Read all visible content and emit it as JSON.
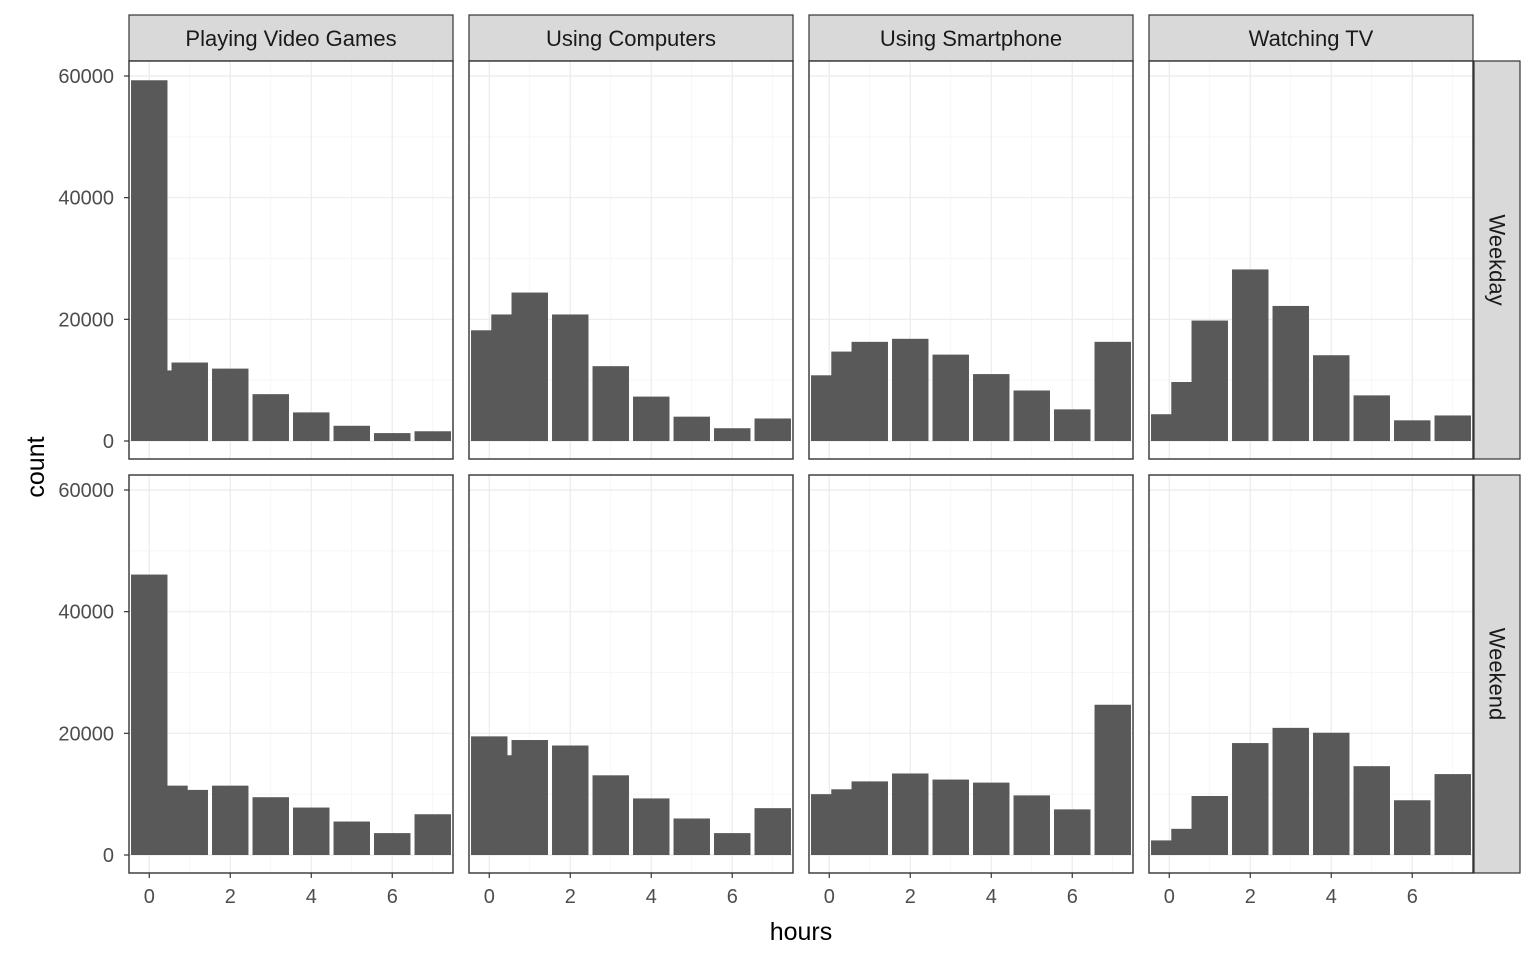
{
  "chart_data": {
    "type": "bar",
    "facet_columns": [
      "Playing Video Games",
      "Using Computers",
      "Using Smartphone",
      "Watching TV"
    ],
    "facet_rows": [
      "Weekday",
      "Weekend"
    ],
    "xlabel": "hours",
    "ylabel": "count",
    "xlim": [
      -0.5,
      7.5
    ],
    "ylim": [
      0,
      60000
    ],
    "x_ticks": [
      0,
      2,
      4,
      6
    ],
    "y_ticks": [
      0,
      20000,
      40000,
      60000
    ],
    "x_tick_labels": [
      "0",
      "2",
      "4",
      "6"
    ],
    "y_tick_labels": [
      "0",
      "20000",
      "40000",
      "60000"
    ],
    "x": [
      0,
      0.5,
      1,
      2,
      3,
      4,
      5,
      6,
      7
    ],
    "bar_color": "#595959",
    "grid": true,
    "theme": "bw",
    "panels": [
      {
        "row": "Weekday",
        "column": "Playing Video Games",
        "values": [
          59300,
          11600,
          12900,
          11900,
          7700,
          4700,
          2500,
          1300,
          1600
        ]
      },
      {
        "row": "Weekday",
        "column": "Using Computers",
        "values": [
          18200,
          20800,
          24400,
          20800,
          12300,
          7300,
          4000,
          2100,
          3700
        ]
      },
      {
        "row": "Weekday",
        "column": "Using Smartphone",
        "values": [
          10800,
          14700,
          16300,
          16800,
          14200,
          11000,
          8300,
          5200,
          16300
        ]
      },
      {
        "row": "Weekday",
        "column": "Watching TV",
        "values": [
          4400,
          9700,
          19800,
          28200,
          22200,
          14100,
          7500,
          3400,
          4200
        ]
      },
      {
        "row": "Weekend",
        "column": "Playing Video Games",
        "values": [
          46100,
          11400,
          10700,
          11400,
          9500,
          7800,
          5500,
          3600,
          6700
        ]
      },
      {
        "row": "Weekend",
        "column": "Using Computers",
        "values": [
          19500,
          16400,
          18900,
          18000,
          13100,
          9300,
          6000,
          3600,
          7700
        ]
      },
      {
        "row": "Weekend",
        "column": "Using Smartphone",
        "values": [
          10000,
          10800,
          12100,
          13400,
          12400,
          11900,
          9800,
          7500,
          24700
        ]
      },
      {
        "row": "Weekend",
        "column": "Watching TV",
        "values": [
          2400,
          4300,
          9700,
          18400,
          20900,
          20100,
          14600,
          9000,
          13300
        ]
      }
    ]
  }
}
